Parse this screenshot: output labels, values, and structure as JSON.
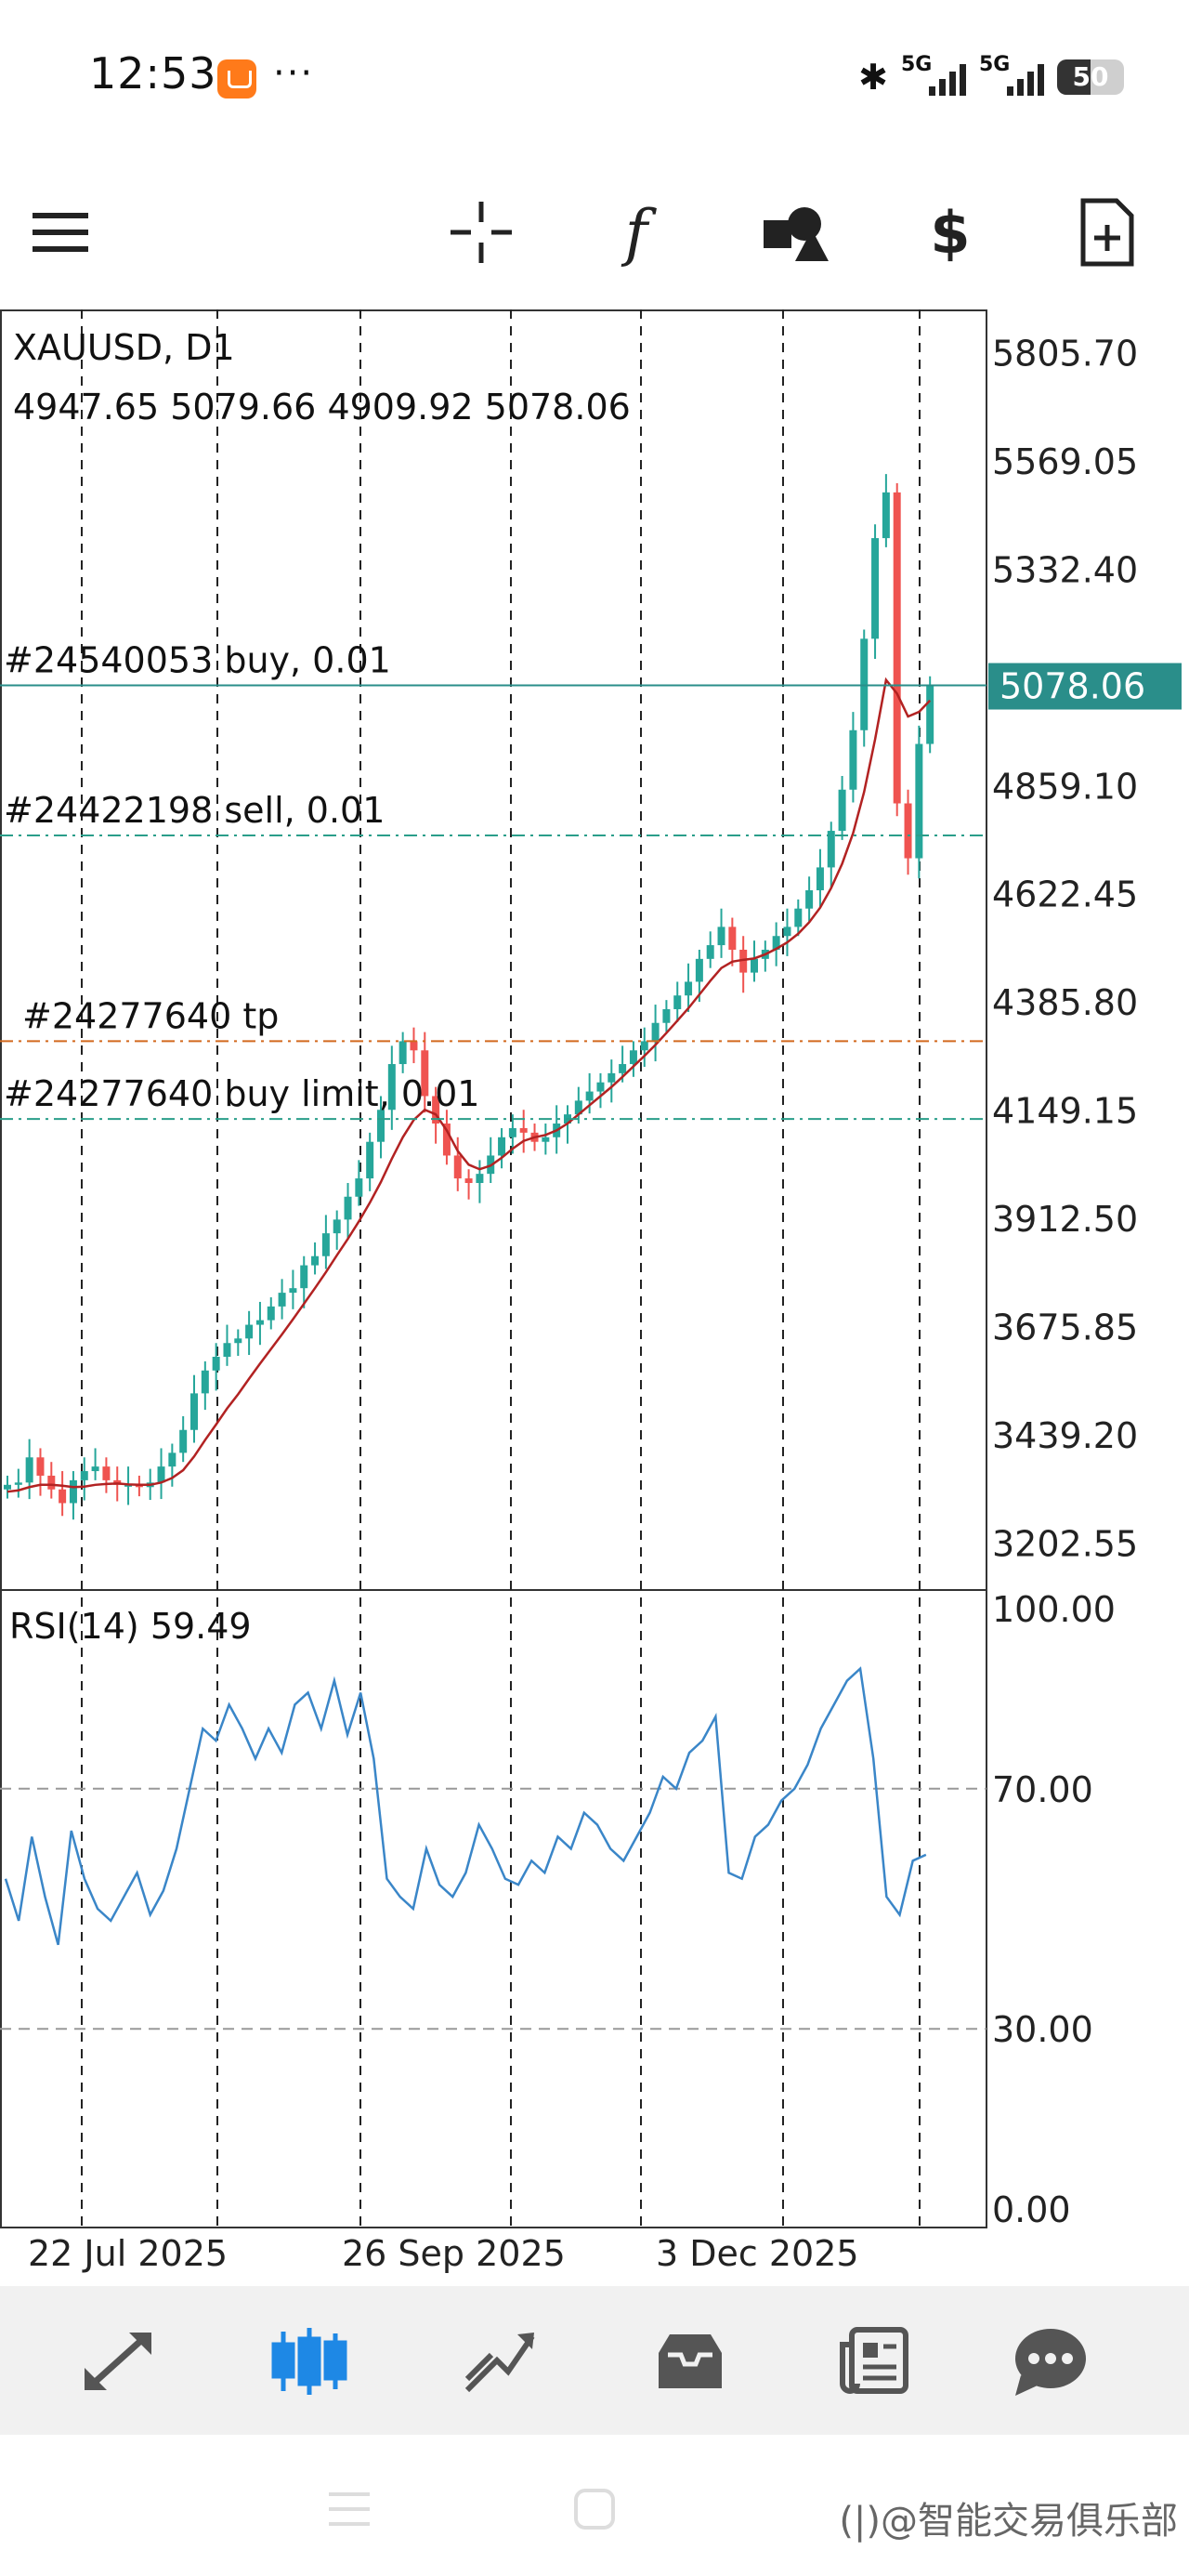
{
  "status_bar": {
    "time": "12:53",
    "more": "···",
    "signal_1": "5G",
    "signal_2": "5G",
    "battery": "50"
  },
  "toolbar": {
    "icons": [
      "menu-icon",
      "crosshair-icon",
      "function-icon",
      "shapes-icon",
      "currency-exchange-icon",
      "new-order-icon"
    ]
  },
  "chart": {
    "symbol": "XAUUSD, D1",
    "ohlc": "4947.65 5079.66 4909.92 5078.06",
    "current_price": "5078.06",
    "price_ticks": [
      "5805.70",
      "5569.05",
      "5332.40",
      "4859.10",
      "4622.45",
      "4385.80",
      "4149.15",
      "3912.50",
      "3675.85",
      "3439.20",
      "3202.55"
    ],
    "order_lines": [
      {
        "label": "#24540053 buy, 0.01",
        "price": 5078.06,
        "color": "#2a8e8a",
        "style": "solid"
      },
      {
        "label": "#24422198 sell, 0.01",
        "price": 4750,
        "color": "#2a9e8a",
        "style": "dashdot"
      },
      {
        "label": "#24277640 tp",
        "price": 4300,
        "color": "#d2691e",
        "style": "dashdot"
      },
      {
        "label": "#24277640 buy limit, 0.01",
        "price": 4130,
        "color": "#2a9e8a",
        "style": "dashdot"
      }
    ],
    "date_labels": [
      "22 Jul 2025",
      "26 Sep 2025",
      "3 Dec 2025"
    ],
    "up_color": "#26a69a",
    "down_color": "#ef5350",
    "ma_color": "#b22222"
  },
  "rsi": {
    "label": "RSI(14) 59.49",
    "ticks": [
      "100.00",
      "70.00",
      "30.00",
      "0.00"
    ],
    "line_color": "#3a86c8"
  },
  "chart_data": {
    "type": "line",
    "title": "XAUUSD, D1",
    "xlabel": "",
    "ylabel": "",
    "ylim": [
      3100,
      5900
    ],
    "x_tick_labels": [
      "22 Jul 2025",
      "26 Sep 2025",
      "3 Dec 2025"
    ],
    "series": [
      {
        "values": [
          3330,
          3335,
          3390,
          3350,
          3320,
          3290,
          3340,
          3360,
          3370,
          3340,
          3330,
          3330,
          3325,
          3335,
          3370,
          3400,
          3450,
          3530,
          3580,
          3610,
          3640,
          3650,
          3680,
          3690,
          3720,
          3750,
          3760,
          3810,
          3830,
          3880,
          3910,
          3960,
          4000,
          4080,
          4150,
          4250,
          4300,
          4280,
          4180,
          4120,
          4050,
          4000,
          3990,
          4010,
          4050,
          4090,
          4110,
          4100,
          4080,
          4090,
          4120,
          4140,
          4170,
          4190,
          4210,
          4230,
          4250,
          4280,
          4300,
          4340,
          4370,
          4400,
          4430,
          4480,
          4510,
          4550,
          4500,
          4450,
          4480,
          4500,
          4530,
          4550,
          4590,
          4630,
          4680,
          4760,
          4850,
          4980,
          5180,
          5400,
          5500,
          4820,
          4700,
          4950,
          5078
        ],
        "role": "close"
      },
      {
        "values": [
          3315,
          3318,
          3325,
          3330,
          3330,
          3328,
          3325,
          3326,
          3330,
          3332,
          3333,
          3331,
          3330,
          3330,
          3335,
          3345,
          3362,
          3392,
          3428,
          3462,
          3497,
          3528,
          3562,
          3595,
          3627,
          3659,
          3692,
          3726,
          3760,
          3795,
          3832,
          3868,
          3906,
          3947,
          3992,
          4043,
          4090,
          4128,
          4150,
          4140,
          4105,
          4060,
          4030,
          4020,
          4028,
          4045,
          4065,
          4082,
          4090,
          4095,
          4105,
          4120,
          4140,
          4160,
          4180,
          4200,
          4222,
          4245,
          4268,
          4292,
          4318,
          4345,
          4372,
          4402,
          4432,
          4460,
          4474,
          4478,
          4481,
          4490,
          4502,
          4516,
          4535,
          4560,
          4592,
          4635,
          4688,
          4755,
          4845,
          4960,
          5090,
          5060,
          5010,
          5020,
          5045
        ],
        "role": "moving-average"
      }
    ],
    "rsi": {
      "name": "RSI(14)",
      "ylim": [
        0,
        100
      ],
      "levels": [
        70,
        30
      ],
      "values": [
        55,
        48,
        62,
        52,
        44,
        63,
        55,
        50,
        48,
        52,
        56,
        49,
        53,
        60,
        70,
        80,
        78,
        84,
        80,
        75,
        80,
        76,
        84,
        86,
        80,
        88,
        79,
        86,
        75,
        55,
        52,
        50,
        60,
        54,
        52,
        56,
        64,
        60,
        55,
        54,
        58,
        56,
        62,
        60,
        66,
        64,
        60,
        58,
        62,
        66,
        72,
        70,
        76,
        78,
        82,
        56,
        55,
        62,
        64,
        68,
        70,
        74,
        80,
        84,
        88,
        90,
        75,
        52,
        49,
        58,
        59
      ]
    }
  },
  "bottom_nav": {
    "items": [
      "quotes-icon",
      "chart-icon",
      "trade-icon",
      "history-icon",
      "news-icon",
      "messages-icon"
    ],
    "active": 1
  },
  "watermark": "(|)@智能交易俱乐部"
}
